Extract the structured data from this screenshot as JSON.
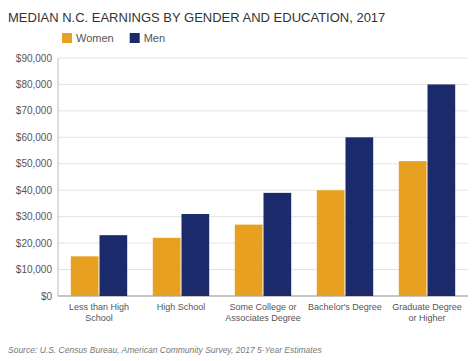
{
  "chart_data": {
    "type": "bar",
    "title": "MEDIAN N.C. EARNINGS BY GENDER AND EDUCATION, 2017",
    "categories": [
      "Less than High\nSchool",
      "High School",
      "Some College or\nAssociates Degree",
      "Bachelor's Degree",
      "Graduate Degree\nor Higher"
    ],
    "series": [
      {
        "name": "Women",
        "color": "#E8A020",
        "values": [
          15000,
          22000,
          27000,
          40000,
          51000
        ]
      },
      {
        "name": "Men",
        "color": "#1B2A6B",
        "values": [
          23000,
          31000,
          39000,
          60000,
          80000
        ]
      }
    ],
    "ylim": [
      0,
      90000
    ],
    "yticks": [
      {
        "value": 0,
        "label": "$0"
      },
      {
        "value": 10000,
        "label": "$10,000"
      },
      {
        "value": 20000,
        "label": "$20,000"
      },
      {
        "value": 30000,
        "label": "$30,000"
      },
      {
        "value": 40000,
        "label": "$40,000"
      },
      {
        "value": 50000,
        "label": "$50,000"
      },
      {
        "value": 60000,
        "label": "$60,000"
      },
      {
        "value": 70000,
        "label": "$70,000"
      },
      {
        "value": 80000,
        "label": "$80,000"
      },
      {
        "value": 90000,
        "label": "$90,000"
      }
    ],
    "grid": true,
    "legend": "upper left",
    "annotations": [
      "Source: U.S. Census Bureau, American Community Survey, 2017 5-Year Estimates"
    ]
  }
}
